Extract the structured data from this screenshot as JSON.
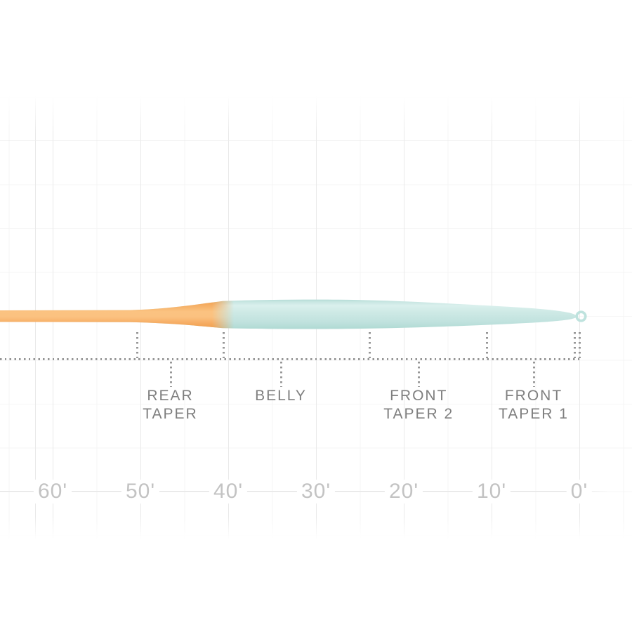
{
  "colors": {
    "running_line_orange": "#fbc381",
    "running_line_orange_edge": "#ef9b45",
    "head_teal": "#cde9e5",
    "head_teal_edge": "#a9d7d1",
    "head_teal_highlight": "#daf0ed",
    "tip_loop_teal": "#bfe3de",
    "section_label_gray": "#7f7f7f",
    "tick_label_gray": "#c3c3c3",
    "dotted_line_gray": "#979797",
    "grid_major_gray": "#e9e9e9",
    "grid_minor_gray": "#f4f4f4",
    "background": "#ffffff"
  },
  "axis": {
    "unit": "ft",
    "ticks": [
      {
        "label": "60'",
        "ft": 60
      },
      {
        "label": "50'",
        "ft": 50
      },
      {
        "label": "40'",
        "ft": 40
      },
      {
        "label": "30'",
        "ft": 30
      },
      {
        "label": "20'",
        "ft": 20
      },
      {
        "label": "10'",
        "ft": 10
      },
      {
        "label": "0'",
        "ft": 0
      }
    ]
  },
  "sections": [
    {
      "name": "REAR TAPER",
      "lines": [
        "REAR",
        "TAPER"
      ],
      "label_center_ft": 46.6,
      "from_ft": 50.4,
      "to_ft": 40.6
    },
    {
      "name": "BELLY",
      "lines": [
        "BELLY"
      ],
      "label_center_ft": 34.0,
      "from_ft": 40.6,
      "to_ft": 23.9
    },
    {
      "name": "FRONT TAPER 2",
      "lines": [
        "FRONT",
        "TAPER 2"
      ],
      "label_center_ft": 18.3,
      "from_ft": 23.9,
      "to_ft": 10.6
    },
    {
      "name": "FRONT TAPER 1",
      "lines": [
        "FRONT",
        "TAPER 1"
      ],
      "label_center_ft": 5.2,
      "from_ft": 10.6,
      "to_ft": 0.6
    }
  ],
  "chart_data": {
    "type": "area",
    "description": "Fly-line taper profile: line thickness drawn against distance from the front tip, with dotted markers separating the labeled taper sections and a welded loop at the tip.",
    "x_unit": "feet from front tip",
    "x_range_ft": [
      66,
      0
    ],
    "x_ticks_ft": [
      60,
      50,
      40,
      30,
      20,
      10,
      0
    ],
    "boundary_markers_ft": [
      50.4,
      40.6,
      23.9,
      10.6,
      0.6,
      0
    ],
    "labeled_sections": [
      "REAR TAPER",
      "BELLY",
      "FRONT TAPER 2",
      "FRONT TAPER 1"
    ],
    "color_zones": [
      {
        "from_ft": 66,
        "to_ft": 40.6,
        "color_key": "running_line_orange"
      },
      {
        "from_ft": 40.6,
        "to_ft": 0,
        "color_key": "head_teal"
      }
    ],
    "profile_points_ft_thickness": [
      {
        "ft": 66,
        "thickness": 16
      },
      {
        "ft": 50.4,
        "thickness": 17
      },
      {
        "ft": 40.6,
        "thickness": 39
      },
      {
        "ft": 27.4,
        "thickness": 42
      },
      {
        "ft": 23.9,
        "thickness": 40
      },
      {
        "ft": 10.6,
        "thickness": 27
      },
      {
        "ft": 0.6,
        "thickness": 7
      }
    ],
    "welded_loop_at_tip": true,
    "grid": "faint square grid, major verticals every 10 ft, minor every 5 ft, fading to white at top and bottom"
  }
}
